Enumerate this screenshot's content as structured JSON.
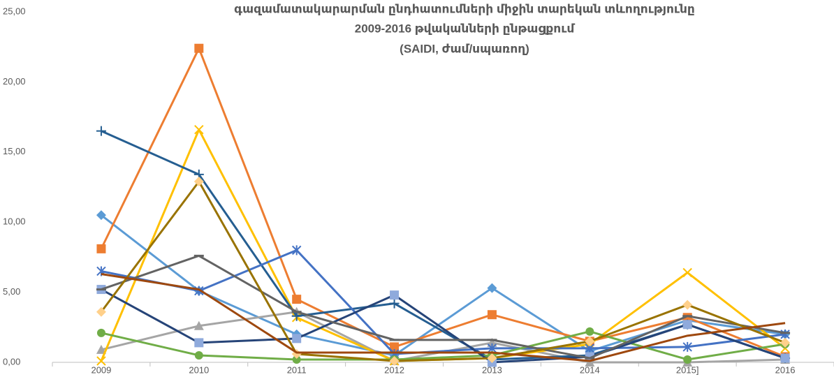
{
  "chart_data": {
    "type": "line",
    "title": [
      "գազամատակարարման ընդհատումների միջին տարեկան տևողությունը",
      "2009-2016 թվականների ընթացքում",
      "(SAIDI, ժամ/սպառող)"
    ],
    "categories": [
      "2009",
      "2010",
      "2011",
      "2012",
      "2013",
      "2014",
      "2015]",
      "2016"
    ],
    "ylim": [
      0,
      25
    ],
    "yticks": [
      {
        "value": 0,
        "label": "0,00"
      },
      {
        "value": 5,
        "label": "5,00"
      },
      {
        "value": 10,
        "label": "10,00"
      },
      {
        "value": 15,
        "label": "15,00"
      },
      {
        "value": 20,
        "label": "20,00"
      },
      {
        "value": 25,
        "label": "25,00"
      }
    ],
    "grid": false,
    "series": [
      {
        "color": "#5b9bd5",
        "marker": "diamond",
        "values": [
          10.5,
          5.1,
          2.0,
          0.5,
          5.3,
          0.8,
          3.0,
          2.0
        ]
      },
      {
        "color": "#ed7d31",
        "marker": "square",
        "values": [
          8.1,
          22.4,
          4.5,
          1.1,
          3.4,
          1.5,
          3.2,
          0.4
        ]
      },
      {
        "color": "#a5a5a5",
        "marker": "triangle",
        "values": [
          0.9,
          2.6,
          3.6,
          0.1,
          1.4,
          0.0,
          0.0,
          0.2
        ]
      },
      {
        "color": "#ffc000",
        "marker": "x",
        "values": [
          0.1,
          16.6,
          3.2,
          0.1,
          0.3,
          1.3,
          6.4,
          1.0
        ]
      },
      {
        "color": "#255e91",
        "marker": "plus",
        "values": [
          16.5,
          13.4,
          3.3,
          4.2,
          0.2,
          0.5,
          2.7,
          0.3
        ]
      },
      {
        "color": "#4472c4",
        "marker": "star",
        "values": [
          6.5,
          5.1,
          8.0,
          0.6,
          1.0,
          1.0,
          1.1,
          2.0
        ]
      },
      {
        "color": "#70ad47",
        "marker": "circle",
        "values": [
          2.1,
          0.5,
          0.2,
          0.2,
          0.5,
          2.2,
          0.2,
          1.3
        ]
      },
      {
        "color": "#264478",
        "marker_color": "#8faadc",
        "marker": "square",
        "values": [
          5.2,
          1.4,
          1.7,
          4.8,
          0.0,
          0.4,
          2.7,
          0.3
        ]
      },
      {
        "color": "#636363",
        "marker": "dash",
        "values": [
          5.2,
          7.6,
          3.6,
          1.6,
          1.6,
          0.3,
          3.3,
          2.1
        ]
      },
      {
        "color": "#997300",
        "marker_color": "#ffd08a",
        "marker": "diamond",
        "values": [
          3.6,
          12.9,
          0.6,
          0.1,
          0.3,
          1.5,
          4.1,
          1.4
        ]
      },
      {
        "color": "#9e480e",
        "marker": "none",
        "values": [
          6.3,
          5.2,
          0.7,
          0.7,
          0.7,
          0.1,
          1.9,
          2.8
        ]
      }
    ]
  }
}
